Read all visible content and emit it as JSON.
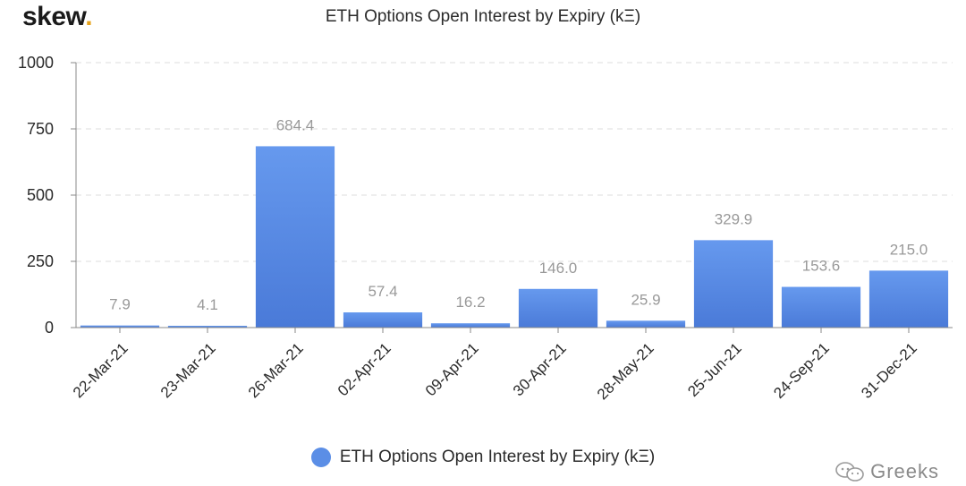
{
  "logo": {
    "text": "skew",
    "dot": "."
  },
  "watermark": {
    "icon": "wechat-icon",
    "text": "Greeks"
  },
  "colors": {
    "bar_top": "#6699ee",
    "bar_bottom": "#4a7ad8",
    "label": "#999999"
  },
  "chart_data": {
    "type": "bar",
    "title": "ETH Options Open Interest by Expiry (kΞ)",
    "categories": [
      "22-Mar-21",
      "23-Mar-21",
      "26-Mar-21",
      "02-Apr-21",
      "09-Apr-21",
      "30-Apr-21",
      "28-May-21",
      "25-Jun-21",
      "24-Sep-21",
      "31-Dec-21"
    ],
    "series": [
      {
        "name": "ETH Options Open Interest by Expiry (kΞ)",
        "values": [
          7.9,
          4.1,
          684.4,
          57.4,
          16.2,
          146.0,
          25.9,
          329.9,
          153.6,
          215.0
        ]
      }
    ],
    "data_labels": [
      "7.9",
      "4.1",
      "684.4",
      "57.4",
      "16.2",
      "146.0",
      "25.9",
      "329.9",
      "153.6",
      "215.0"
    ],
    "ylim": [
      0,
      1000
    ],
    "yticks": [
      0,
      250,
      500,
      750,
      1000
    ],
    "grid": true,
    "legend": "bottom"
  }
}
